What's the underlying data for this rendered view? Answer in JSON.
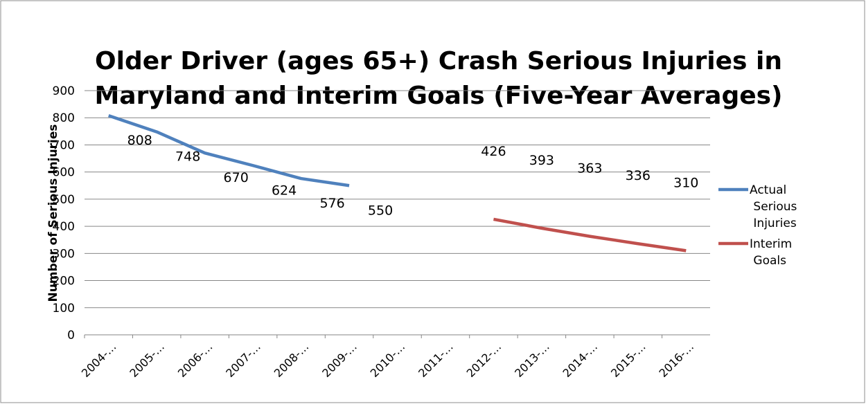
{
  "chart_data": {
    "type": "line",
    "title": [
      "Older Driver (ages 65+) Crash Serious Injuries in",
      "Maryland  and Interim Goals (Five-Year Averages)"
    ],
    "y_axis_label": "Number of Serious Injuries",
    "categories": [
      "2004-…",
      "2005-…",
      "2006-…",
      "2007-…",
      "2008-…",
      "2009-…",
      "2010-…",
      "2011-…",
      "2012-…",
      "2013-…",
      "2014-…",
      "2015-…",
      "2016-…"
    ],
    "series": [
      {
        "name": "Actual Serious Injuries",
        "color": "#4f81bd",
        "values": [
          808,
          748,
          670,
          624,
          576,
          550,
          null,
          null,
          null,
          null,
          null,
          null,
          null
        ]
      },
      {
        "name": "Interim Goals",
        "color": "#c0504d",
        "values": [
          null,
          null,
          null,
          null,
          null,
          null,
          null,
          null,
          426,
          393,
          363,
          336,
          310
        ]
      }
    ],
    "ylim": [
      0,
      900
    ],
    "yticks": [
      0,
      100,
      200,
      300,
      400,
      500,
      600,
      700,
      800,
      900
    ],
    "grid": true,
    "legend": "right"
  }
}
